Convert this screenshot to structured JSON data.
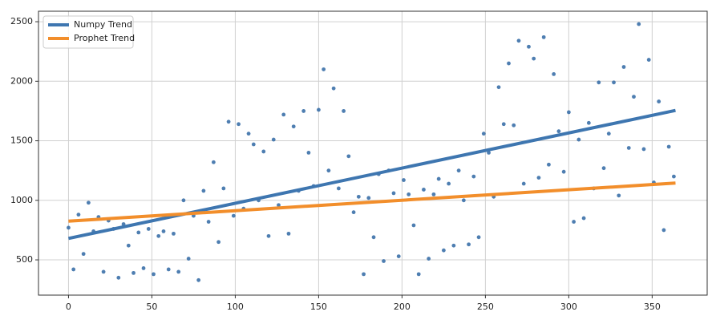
{
  "chart_data": {
    "type": "scatter",
    "xlim": [
      -18,
      383
    ],
    "ylim": [
      204,
      2588
    ],
    "xticks": [
      0,
      50,
      100,
      150,
      200,
      250,
      300,
      350
    ],
    "yticks": [
      500,
      1000,
      1500,
      2000,
      2500
    ],
    "grid": true,
    "legend": "upper-left",
    "points": {
      "color": "#3b70a8",
      "x": [
        0,
        3,
        6,
        9,
        12,
        15,
        18,
        21,
        24,
        27,
        30,
        33,
        36,
        39,
        42,
        45,
        48,
        51,
        54,
        57,
        60,
        63,
        66,
        69,
        72,
        75,
        78,
        81,
        84,
        87,
        90,
        93,
        96,
        99,
        102,
        105,
        108,
        111,
        114,
        117,
        120,
        123,
        126,
        129,
        132,
        135,
        138,
        141,
        144,
        147,
        150,
        153,
        156,
        159,
        162,
        165,
        168,
        171,
        174,
        177,
        180,
        183,
        186,
        189,
        192,
        195,
        198,
        201,
        204,
        207,
        210,
        213,
        216,
        219,
        222,
        225,
        228,
        231,
        234,
        237,
        240,
        243,
        246,
        249,
        252,
        255,
        258,
        261,
        264,
        267,
        270,
        273,
        276,
        279,
        282,
        285,
        288,
        291,
        294,
        297,
        300,
        303,
        306,
        309,
        312,
        315,
        318,
        321,
        324,
        327,
        330,
        333,
        336,
        339,
        342,
        345,
        348,
        351,
        354,
        357,
        360,
        363
      ],
      "values": [
        770,
        420,
        880,
        550,
        980,
        740,
        860,
        400,
        830,
        760,
        350,
        800,
        620,
        390,
        730,
        430,
        760,
        380,
        700,
        740,
        420,
        720,
        400,
        1000,
        510,
        870,
        330,
        1080,
        820,
        1320,
        650,
        1100,
        1660,
        870,
        1640,
        930,
        1560,
        1470,
        1000,
        1410,
        700,
        1510,
        960,
        1720,
        720,
        1620,
        1080,
        1750,
        1400,
        1120,
        1760,
        2100,
        1250,
        1940,
        1100,
        1750,
        1370,
        900,
        1030,
        380,
        1020,
        690,
        1220,
        490,
        1250,
        1060,
        530,
        1170,
        1050,
        790,
        380,
        1090,
        510,
        1050,
        1180,
        580,
        1140,
        620,
        1250,
        1000,
        630,
        1200,
        690,
        1560,
        1400,
        1030,
        1950,
        1640,
        2150,
        1630,
        2340,
        1140,
        2290,
        2190,
        1190,
        2370,
        1300,
        2060,
        1580,
        1240,
        1740,
        820,
        1510,
        850,
        1650,
        1100,
        1990,
        1270,
        1560,
        1990,
        1040,
        2120,
        1440,
        1870,
        2480,
        1430,
        2180,
        1150,
        1830,
        750,
        1450,
        1200
      ]
    },
    "series": [
      {
        "name": "Numpy Trend",
        "type": "line",
        "color": "#3e76b0",
        "x": [
          0,
          364
        ],
        "values": [
          680,
          1755
        ]
      },
      {
        "name": "Prophet Trend",
        "type": "line",
        "color": "#f28e2b",
        "x": [
          0,
          364
        ],
        "values": [
          825,
          1145
        ]
      }
    ]
  }
}
